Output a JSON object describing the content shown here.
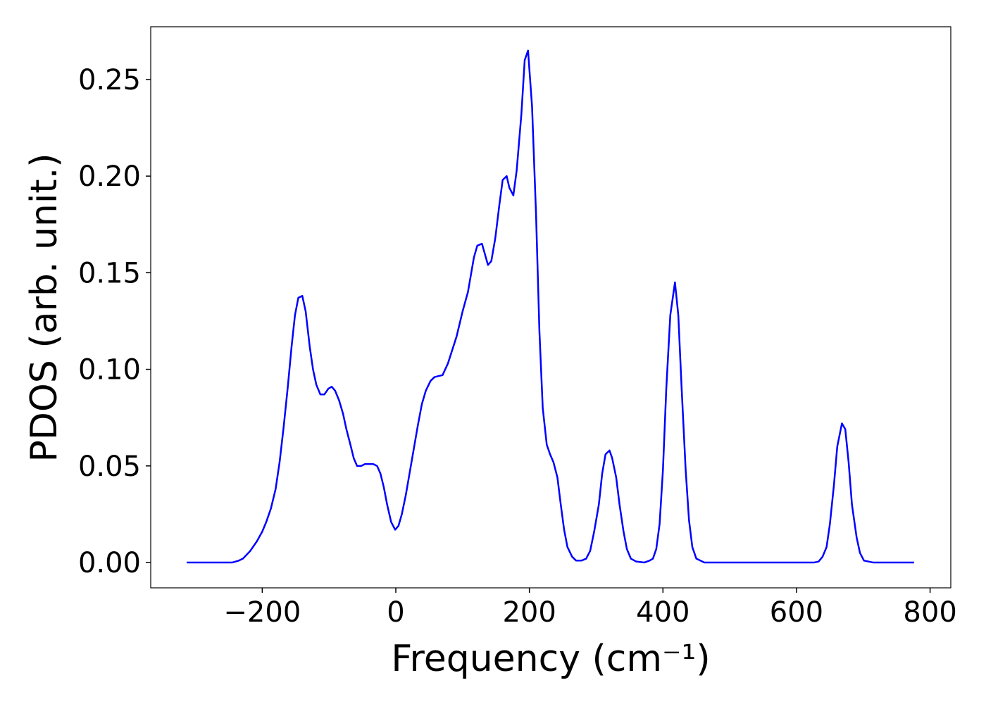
{
  "chart_data": {
    "type": "line",
    "x_label": "Frequency (cm⁻¹)",
    "y_label": "PDOS (arb. unit.)",
    "xlim": [
      -367,
      831
    ],
    "ylim": [
      -0.0131,
      0.2773
    ],
    "xticks": [
      {
        "value": -200,
        "label": "−200"
      },
      0,
      200,
      400,
      600,
      800
    ],
    "yticks": [
      {
        "value": 0,
        "label": "0.00"
      },
      {
        "value": 0.05,
        "label": "0.05"
      },
      {
        "value": 0.1,
        "label": "0.10"
      },
      {
        "value": 0.15,
        "label": "0.15"
      },
      {
        "value": 0.2,
        "label": "0.20"
      },
      {
        "value": 0.25,
        "label": "0.25"
      }
    ],
    "x": [
      -313,
      -245,
      -235,
      -229,
      -218,
      -208,
      -200,
      -194,
      -187,
      -180,
      -174,
      -168,
      -162,
      -156,
      -151,
      -146,
      -140,
      -135,
      -129,
      -124,
      -119,
      -113,
      -107,
      -101,
      -96,
      -91,
      -85,
      -79,
      -74,
      -68,
      -63,
      -58,
      -52,
      -46,
      -40,
      -34,
      -28,
      -23,
      -18,
      -13,
      -7,
      -1,
      4,
      9,
      15,
      21,
      27,
      33,
      39,
      45,
      52,
      58,
      70,
      78,
      91,
      100,
      108,
      117,
      122,
      129,
      138,
      143,
      149,
      155,
      160,
      166,
      170,
      176,
      181,
      188,
      193,
      198,
      204,
      210,
      215,
      220,
      226,
      231,
      236,
      242,
      247,
      252,
      257,
      264,
      270,
      278,
      285,
      291,
      297,
      304,
      309,
      314,
      320,
      324,
      330,
      335,
      341,
      346,
      352,
      360,
      372,
      380,
      385,
      390,
      395,
      400,
      405,
      411,
      418,
      423,
      428,
      434,
      439,
      444,
      450,
      462,
      626,
      633,
      639,
      645,
      650,
      656,
      661,
      668,
      673,
      678,
      683,
      690,
      695,
      701,
      715,
      776
    ],
    "series": [
      {
        "color": "#0000ff",
        "values": [
          0,
          0,
          0.001,
          0.002,
          0.006,
          0.011,
          0.016,
          0.021,
          0.028,
          0.038,
          0.052,
          0.07,
          0.09,
          0.112,
          0.128,
          0.137,
          0.138,
          0.13,
          0.112,
          0.1,
          0.092,
          0.087,
          0.087,
          0.09,
          0.091,
          0.089,
          0.084,
          0.077,
          0.069,
          0.061,
          0.054,
          0.05,
          0.05,
          0.051,
          0.051,
          0.051,
          0.05,
          0.046,
          0.039,
          0.03,
          0.021,
          0.017,
          0.019,
          0.025,
          0.035,
          0.047,
          0.059,
          0.071,
          0.082,
          0.089,
          0.094,
          0.096,
          0.097,
          0.103,
          0.117,
          0.13,
          0.14,
          0.158,
          0.164,
          0.165,
          0.154,
          0.156,
          0.168,
          0.185,
          0.198,
          0.2,
          0.194,
          0.19,
          0.203,
          0.232,
          0.26,
          0.265,
          0.236,
          0.18,
          0.12,
          0.08,
          0.061,
          0.056,
          0.052,
          0.044,
          0.03,
          0.017,
          0.008,
          0.003,
          0.001,
          0.001,
          0.002,
          0.006,
          0.016,
          0.03,
          0.046,
          0.056,
          0.058,
          0.054,
          0.044,
          0.03,
          0.016,
          0.007,
          0.002,
          0.0005,
          0,
          0.001,
          0.002,
          0.007,
          0.02,
          0.048,
          0.09,
          0.128,
          0.145,
          0.128,
          0.09,
          0.048,
          0.022,
          0.008,
          0.002,
          0,
          0,
          0.0005,
          0.003,
          0.008,
          0.02,
          0.04,
          0.06,
          0.072,
          0.069,
          0.052,
          0.03,
          0.013,
          0.005,
          0.001,
          0,
          0
        ]
      }
    ]
  }
}
